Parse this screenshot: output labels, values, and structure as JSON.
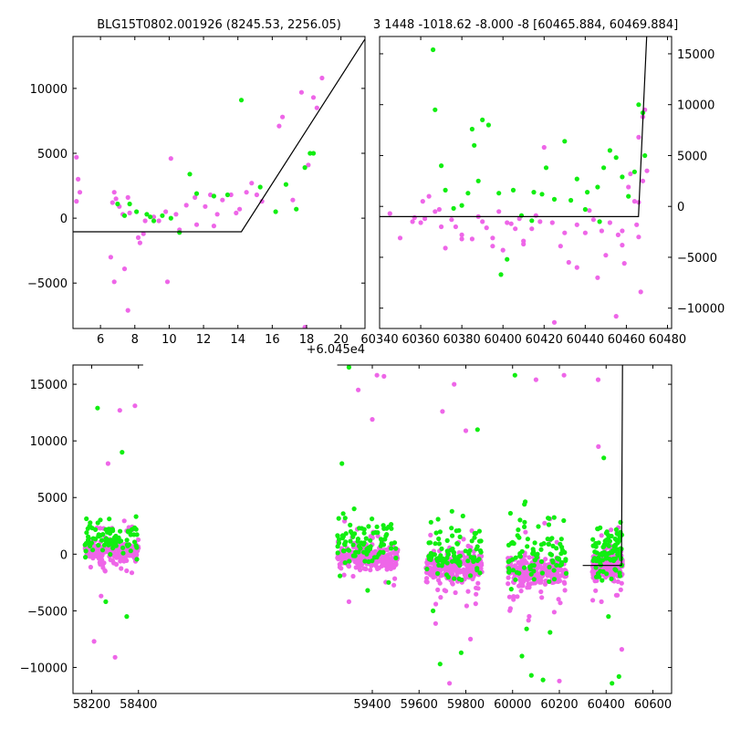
{
  "chart_data": [
    {
      "type": "scatter",
      "panel": "top-left",
      "title": "BLG15T0802.001926 (8245.53, 2256.05)",
      "offset_label": "+6.045e4",
      "xlim": [
        4.4,
        21.4
      ],
      "ylim": [
        -8500,
        14000
      ],
      "xticks": [
        6,
        8,
        10,
        12,
        14,
        16,
        18,
        20
      ],
      "yticks": [
        -5000,
        0,
        5000,
        10000
      ],
      "ytick_labels": [
        "−5000",
        "0",
        "5000",
        "10000"
      ],
      "yaxis_side": "left",
      "model_line": [
        [
          4.4,
          -1050
        ],
        [
          14.2,
          -1050
        ],
        [
          21.4,
          13800
        ]
      ],
      "magenta_points": [
        [
          4.6,
          4700
        ],
        [
          4.7,
          3000
        ],
        [
          4.8,
          2000
        ],
        [
          4.6,
          1300
        ],
        [
          6.8,
          2000
        ],
        [
          6.9,
          1500
        ],
        [
          7.1,
          900
        ],
        [
          7.3,
          300
        ],
        [
          7.6,
          1600
        ],
        [
          7.7,
          400
        ],
        [
          8.2,
          -1500
        ],
        [
          8.3,
          -1900
        ],
        [
          8.6,
          -200
        ],
        [
          9.4,
          -200
        ],
        [
          9.8,
          500
        ],
        [
          10.1,
          4600
        ],
        [
          10.4,
          300
        ],
        [
          10.6,
          -900
        ],
        [
          11.0,
          1000
        ],
        [
          11.5,
          1600
        ],
        [
          11.6,
          -500
        ],
        [
          12.1,
          900
        ],
        [
          12.4,
          1800
        ],
        [
          12.8,
          300
        ],
        [
          13.1,
          1400
        ],
        [
          13.6,
          1800
        ],
        [
          14.1,
          700
        ],
        [
          14.5,
          2000
        ],
        [
          14.8,
          2700
        ],
        [
          15.4,
          1300
        ],
        [
          16.4,
          7100
        ],
        [
          16.6,
          7800
        ],
        [
          17.2,
          1400
        ],
        [
          17.7,
          9700
        ],
        [
          18.4,
          9300
        ],
        [
          18.6,
          8500
        ],
        [
          18.9,
          10800
        ],
        [
          7.4,
          -3900
        ],
        [
          7.6,
          -7100
        ],
        [
          9.9,
          -4900
        ],
        [
          6.6,
          -3000
        ],
        [
          6.8,
          -4900
        ],
        [
          17.9,
          -8400
        ],
        [
          8.5,
          -1200
        ],
        [
          9.1,
          100
        ],
        [
          12.6,
          -600
        ],
        [
          13.9,
          400
        ],
        [
          15.1,
          1800
        ],
        [
          6.7,
          1200
        ],
        [
          18.1,
          4100
        ]
      ],
      "green_points": [
        [
          7.0,
          1100
        ],
        [
          7.4,
          200
        ],
        [
          7.7,
          1100
        ],
        [
          8.1,
          500
        ],
        [
          8.7,
          300
        ],
        [
          9.1,
          -200
        ],
        [
          9.6,
          200
        ],
        [
          10.1,
          0
        ],
        [
          10.6,
          -1100
        ],
        [
          11.2,
          3400
        ],
        [
          11.6,
          1900
        ],
        [
          12.6,
          1700
        ],
        [
          13.4,
          1800
        ],
        [
          14.2,
          9100
        ],
        [
          15.3,
          2400
        ],
        [
          16.2,
          500
        ],
        [
          16.8,
          2600
        ],
        [
          17.4,
          700
        ],
        [
          18.2,
          5000
        ],
        [
          18.4,
          5000
        ],
        [
          17.9,
          3900
        ],
        [
          8.9,
          100
        ]
      ]
    },
    {
      "type": "scatter",
      "panel": "top-right",
      "title": "3 1448 -1018.62 -8.000 -8 [60465.884, 60469.884]",
      "xlim": [
        60340,
        60482
      ],
      "ylim": [
        -12000,
        16700
      ],
      "xticks": [
        60340,
        60360,
        60380,
        60400,
        60420,
        60440,
        60460,
        60480
      ],
      "yticks": [
        -10000,
        -5000,
        0,
        5000,
        10000,
        15000
      ],
      "ytick_labels": [
        "−10000",
        "−5000",
        "0",
        "5000",
        "10000",
        "15000"
      ],
      "yaxis_side": "right",
      "model_line": [
        [
          60340,
          -1000
        ],
        [
          60465.9,
          -1000
        ],
        [
          60469.9,
          16700
        ]
      ],
      "magenta_points": [
        [
          60350,
          -3100
        ],
        [
          60356,
          -1500
        ],
        [
          60361,
          500
        ],
        [
          60364,
          1000
        ],
        [
          60367,
          -500
        ],
        [
          60370,
          -2000
        ],
        [
          60375,
          -1300
        ],
        [
          60380,
          -2800
        ],
        [
          60385,
          -3200
        ],
        [
          60390,
          -1500
        ],
        [
          60395,
          -3100
        ],
        [
          60398,
          -500
        ],
        [
          60402,
          -1600
        ],
        [
          60406,
          -2200
        ],
        [
          60410,
          -3700
        ],
        [
          60414,
          -2200
        ],
        [
          60418,
          -1500
        ],
        [
          60420,
          5800
        ],
        [
          60424,
          -1600
        ],
        [
          60428,
          -3900
        ],
        [
          60432,
          -5500
        ],
        [
          60436,
          -1800
        ],
        [
          60440,
          -2600
        ],
        [
          60444,
          -1300
        ],
        [
          60448,
          -2400
        ],
        [
          60452,
          -1600
        ],
        [
          60456,
          -2800
        ],
        [
          60458,
          -3800
        ],
        [
          60461,
          1900
        ],
        [
          60464,
          500
        ],
        [
          60466,
          6800
        ],
        [
          60468,
          8800
        ],
        [
          60469,
          9500
        ],
        [
          60470,
          3500
        ],
        [
          60467,
          -8400
        ],
        [
          60455,
          -10800
        ],
        [
          60425,
          -11400
        ],
        [
          60446,
          -7000
        ],
        [
          60436,
          -6000
        ],
        [
          60400,
          -4300
        ],
        [
          60395,
          -3900
        ],
        [
          60410,
          -3400
        ],
        [
          60380,
          -3200
        ],
        [
          60372,
          -4100
        ],
        [
          60362,
          -1200
        ],
        [
          60360,
          -1600
        ],
        [
          60388,
          -1000
        ],
        [
          60408,
          -1200
        ],
        [
          60430,
          -2600
        ],
        [
          60450,
          -4800
        ],
        [
          60459,
          -5600
        ],
        [
          60462,
          3200
        ],
        [
          60465,
          -1800
        ],
        [
          60458,
          -2400
        ],
        [
          60466,
          400
        ],
        [
          60468,
          2500
        ],
        [
          60466,
          -3000
        ],
        [
          60442,
          -400
        ],
        [
          60416,
          -900
        ],
        [
          60404,
          -1700
        ],
        [
          60392,
          -2100
        ],
        [
          60377,
          -2000
        ],
        [
          60369,
          -300
        ],
        [
          60357,
          -1100
        ],
        [
          60345,
          -700
        ]
      ],
      "green_points": [
        [
          60366,
          15400
        ],
        [
          60367,
          9500
        ],
        [
          60370,
          4000
        ],
        [
          60372,
          1600
        ],
        [
          60376,
          -200
        ],
        [
          60383,
          1300
        ],
        [
          60385,
          7600
        ],
        [
          60386,
          6000
        ],
        [
          60388,
          2500
        ],
        [
          60390,
          8500
        ],
        [
          60393,
          8000
        ],
        [
          60398,
          1300
        ],
        [
          60399,
          -6700
        ],
        [
          60402,
          -5200
        ],
        [
          60405,
          1600
        ],
        [
          60409,
          -900
        ],
        [
          60414,
          -1400
        ],
        [
          60419,
          1200
        ],
        [
          60421,
          3800
        ],
        [
          60425,
          700
        ],
        [
          60430,
          6400
        ],
        [
          60433,
          600
        ],
        [
          60436,
          2700
        ],
        [
          60441,
          1400
        ],
        [
          60446,
          1900
        ],
        [
          60449,
          3800
        ],
        [
          60452,
          5500
        ],
        [
          60455,
          4800
        ],
        [
          60458,
          2900
        ],
        [
          60461,
          1000
        ],
        [
          60464,
          3400
        ],
        [
          60466,
          10000
        ],
        [
          60468,
          9200
        ],
        [
          60469,
          5000
        ],
        [
          60447,
          -1500
        ],
        [
          60440,
          -300
        ],
        [
          60415,
          1400
        ],
        [
          60380,
          100
        ]
      ]
    },
    {
      "type": "scatter",
      "panel": "bottom",
      "xlim": [
        58120,
        60680
      ],
      "ylim": [
        -12300,
        16700
      ],
      "xticks": [
        58200,
        58400,
        59400,
        59600,
        59800,
        60000,
        60200,
        60400,
        60600
      ],
      "yticks": [
        -10000,
        -5000,
        0,
        5000,
        10000,
        15000
      ],
      "ytick_labels": [
        "−10000",
        "−5000",
        "0",
        "5000",
        "10000",
        "15000"
      ],
      "yaxis_side": "left",
      "model_line": [
        [
          60300,
          -1000
        ],
        [
          60465.9,
          -1000
        ],
        [
          60469.9,
          16700
        ]
      ],
      "segments": [
        {
          "xmin": 58170,
          "xmax": 58400,
          "mid": 300,
          "spread": 500,
          "outliers": [
            [
              58225,
              12900
            ],
            [
              58320,
              12700
            ],
            [
              58385,
              13100
            ],
            [
              58240,
              -3700
            ],
            [
              58260,
              -4200
            ],
            [
              58300,
              -9100
            ],
            [
              58210,
              -7700
            ],
            [
              58350,
              -5500
            ],
            [
              58270,
              8000
            ],
            [
              58330,
              9000
            ]
          ]
        },
        {
          "xmin": 59250,
          "xmax": 59510,
          "mid": -300,
          "spread": 600,
          "outliers": [
            [
              59300,
              16500
            ],
            [
              59340,
              14500
            ],
            [
              59420,
              15800
            ],
            [
              59450,
              15700
            ],
            [
              59300,
              -4200
            ],
            [
              59380,
              -3200
            ],
            [
              59470,
              -2500
            ],
            [
              59270,
              8000
            ],
            [
              59400,
              11900
            ]
          ]
        },
        {
          "xmin": 59630,
          "xmax": 59870,
          "mid": -1200,
          "spread": 800,
          "outliers": [
            [
              59700,
              12600
            ],
            [
              59750,
              15000
            ],
            [
              59690,
              -9700
            ],
            [
              59730,
              -11400
            ],
            [
              59780,
              -8700
            ],
            [
              59820,
              -7500
            ],
            [
              59660,
              -5000
            ],
            [
              59800,
              10900
            ],
            [
              59850,
              11000
            ]
          ]
        },
        {
          "xmin": 59980,
          "xmax": 60230,
          "mid": -1500,
          "spread": 900,
          "outliers": [
            [
              60010,
              15800
            ],
            [
              60100,
              15400
            ],
            [
              60220,
              15800
            ],
            [
              60040,
              -9000
            ],
            [
              60080,
              -10700
            ],
            [
              60130,
              -11100
            ],
            [
              60200,
              -11200
            ],
            [
              60060,
              -6600
            ],
            [
              60160,
              -6900
            ]
          ]
        },
        {
          "xmin": 60340,
          "xmax": 60470,
          "mid": -1000,
          "spread": 700,
          "outliers": [
            [
              60366,
              15400
            ],
            [
              60367,
              9500
            ],
            [
              60380,
              -4200
            ],
            [
              60410,
              -5500
            ],
            [
              60425,
              -11400
            ],
            [
              60455,
              -10800
            ],
            [
              60467,
              -8400
            ],
            [
              60390,
              8500
            ]
          ]
        }
      ],
      "green_band": [
        [
          58170,
          58400
        ],
        [
          59250,
          59510
        ],
        [
          59630,
          59870
        ],
        [
          59980,
          60230
        ],
        [
          60340,
          60470
        ]
      ]
    }
  ],
  "colors": {
    "magenta": "#ee66e8",
    "green": "#11ee11",
    "line": "#000000"
  }
}
